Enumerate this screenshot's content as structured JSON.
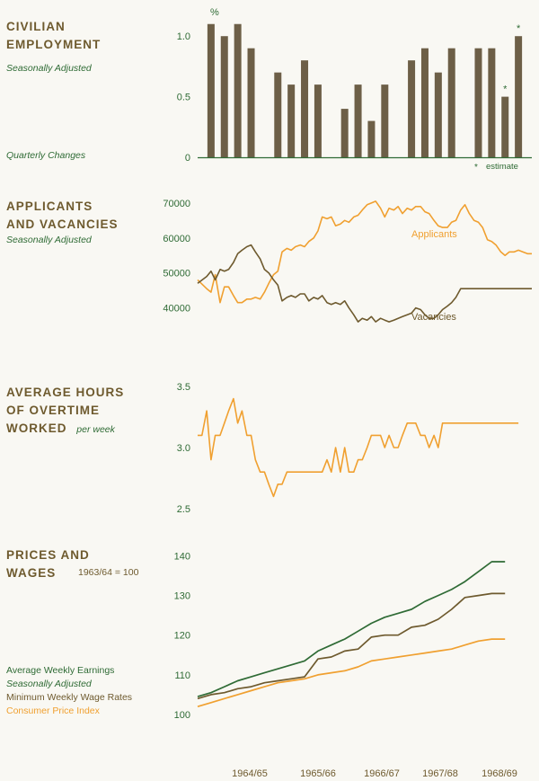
{
  "page": {
    "colors": {
      "green": "#2f6b35",
      "brown": "#6e5a2e",
      "bar": "#6d5f47",
      "orange": "#f0a030",
      "axis": "#2f6b35",
      "background": "#f9f8f3"
    },
    "x_axis_labels": [
      "1964/65",
      "1965/66",
      "1966/67",
      "1967/68",
      "1968/69"
    ]
  },
  "panels": {
    "employment": {
      "title_line1": "CIVILIAN",
      "title_line2": "EMPLOYMENT",
      "subtitle": "Seasonally Adjusted",
      "bottom_label": "Quarterly Changes",
      "unit": "%",
      "estimate_marker": "*",
      "estimate_note": "estimate"
    },
    "applicants": {
      "title_line1": "APPLICANTS",
      "title_line2": "AND VACANCIES",
      "subtitle": "Seasonally Adjusted"
    },
    "overtime": {
      "title_line1": "AVERAGE HOURS",
      "title_line2": "OF OVERTIME",
      "title_line3": "WORKED",
      "title_line3_suffix": "per week"
    },
    "prices": {
      "title_line1": "PRICES AND",
      "title_line2": "WAGES",
      "base_label": "1963/64 = 100",
      "legend": {
        "earnings": "Average Weekly Earnings",
        "earnings_sub": "Seasonally Adjusted",
        "wages": "Minimum Weekly Wage Rates",
        "cpi": "Consumer Price Index"
      }
    }
  },
  "chart_data": [
    {
      "type": "bar",
      "x": [
        1964.25,
        1964.5,
        1964.75,
        1965.0,
        1965.5,
        1965.75,
        1966.0,
        1966.25,
        1966.75,
        1967.0,
        1967.25,
        1967.5,
        1968.0,
        1968.25,
        1968.5,
        1968.75,
        1969.25,
        1969.5,
        1969.75,
        1970.0
      ],
      "values": [
        1.1,
        1.0,
        1.1,
        0.9,
        0.7,
        0.6,
        0.8,
        0.6,
        0.4,
        0.6,
        0.3,
        0.6,
        0.8,
        0.9,
        0.7,
        0.9,
        0.9,
        0.9,
        0.5,
        1.0
      ],
      "estimates": [
        false,
        false,
        false,
        false,
        false,
        false,
        false,
        false,
        false,
        false,
        false,
        false,
        false,
        false,
        false,
        false,
        false,
        false,
        true,
        true
      ],
      "yticks": [
        0,
        0.5,
        1.0
      ],
      "yticklabels": [
        "0",
        "0.5",
        "1.0"
      ],
      "ylim": [
        0,
        1.15
      ],
      "xlim": [
        1964.0,
        1970.25
      ]
    },
    {
      "type": "line",
      "yticks": [
        40000,
        50000,
        60000,
        70000
      ],
      "yticklabels": [
        "40000",
        "50000",
        "60000",
        "70000"
      ],
      "ylim": [
        35000,
        71000
      ],
      "xlim": [
        1964.0,
        1970.25
      ],
      "series": [
        {
          "name": "Applicants",
          "color": "#f0a030",
          "x": [
            1964.0,
            1964.17,
            1964.25,
            1964.33,
            1964.42,
            1964.5,
            1964.58,
            1964.67,
            1964.75,
            1964.83,
            1964.92,
            1965.0,
            1965.08,
            1965.17,
            1965.25,
            1965.33,
            1965.42,
            1965.5,
            1965.58,
            1965.67,
            1965.75,
            1965.83,
            1965.92,
            1966.0,
            1966.08,
            1966.17,
            1966.25,
            1966.33,
            1966.42,
            1966.5,
            1966.58,
            1966.67,
            1966.75,
            1966.83,
            1966.92,
            1967.0,
            1967.08,
            1967.17,
            1967.25,
            1967.33,
            1967.42,
            1967.5,
            1967.58,
            1967.67,
            1967.75,
            1967.83,
            1967.92,
            1968.0,
            1968.08,
            1968.17,
            1968.25,
            1968.33,
            1968.42,
            1968.5,
            1968.58,
            1968.67,
            1968.75,
            1968.83,
            1968.92,
            1969.0,
            1969.08,
            1969.17,
            1969.25,
            1969.33,
            1969.42,
            1969.5,
            1969.58,
            1969.67,
            1969.75,
            1969.83,
            1969.92,
            1970.0,
            1970.08,
            1970.17,
            1970.25
          ],
          "values": [
            48000,
            45500,
            44500,
            49500,
            41500,
            46000,
            46000,
            43500,
            41500,
            41500,
            42500,
            42500,
            43000,
            42500,
            44500,
            47000,
            49500,
            50500,
            56000,
            57000,
            56500,
            57500,
            58000,
            57500,
            59000,
            60000,
            62000,
            66000,
            65500,
            66000,
            63500,
            64000,
            65000,
            64500,
            66000,
            66500,
            68000,
            69500,
            70000,
            70500,
            68500,
            66000,
            68500,
            68000,
            69000,
            67000,
            68500,
            68000,
            69000,
            69000,
            67500,
            67000,
            65000,
            63500,
            63000,
            63000,
            64500,
            65000,
            68000,
            69500,
            67000,
            65000,
            64500,
            63000,
            59500,
            59000,
            58000,
            56000,
            55000,
            56000,
            56000,
            56500,
            56000,
            55500,
            55500
          ]
        },
        {
          "name": "Vacancies",
          "color": "#6e5a2e",
          "x": [
            1964.0,
            1964.17,
            1964.25,
            1964.33,
            1964.42,
            1964.5,
            1964.58,
            1964.67,
            1964.75,
            1964.83,
            1964.92,
            1965.0,
            1965.08,
            1965.17,
            1965.25,
            1965.33,
            1965.42,
            1965.5,
            1965.58,
            1965.67,
            1965.75,
            1965.83,
            1965.92,
            1966.0,
            1966.08,
            1966.17,
            1966.25,
            1966.33,
            1966.42,
            1966.5,
            1966.58,
            1966.67,
            1966.75,
            1966.83,
            1966.92,
            1967.0,
            1967.08,
            1967.17,
            1967.25,
            1967.33,
            1967.42,
            1967.5,
            1967.58,
            1967.67,
            1967.75,
            1967.83,
            1967.92,
            1968.0,
            1968.08,
            1968.17,
            1968.25,
            1968.33,
            1968.42,
            1968.5,
            1968.58,
            1968.67,
            1968.75,
            1968.83,
            1968.92,
            1969.0,
            1969.08,
            1969.17,
            1969.25,
            1969.33,
            1969.42,
            1969.5,
            1969.58,
            1969.67,
            1969.75,
            1969.83,
            1969.92,
            1970.0,
            1970.08,
            1970.17,
            1970.25
          ],
          "values": [
            47000,
            49000,
            50500,
            48000,
            51000,
            50500,
            51000,
            53000,
            55500,
            56500,
            57500,
            58000,
            56000,
            54000,
            51000,
            50000,
            48000,
            46500,
            42000,
            43000,
            43500,
            43000,
            44000,
            44000,
            42000,
            43000,
            42500,
            43500,
            41500,
            41000,
            41500,
            41000,
            42000,
            40000,
            38000,
            36000,
            37000,
            36500,
            37500,
            36000,
            37000,
            36500,
            36000,
            36500,
            37000,
            37500,
            38000,
            38500,
            40000,
            39500,
            38000,
            37000,
            37000,
            38000,
            39500,
            40500,
            41500,
            43000,
            45500,
            45500,
            45500,
            45500,
            45500,
            45500,
            45500,
            45500,
            45500,
            45500,
            45500,
            45500,
            45500,
            45500,
            45500,
            45500,
            45500
          ]
        }
      ]
    },
    {
      "type": "line",
      "ylabel": "",
      "yticks": [
        2.5,
        3.0,
        3.5
      ],
      "yticklabels": [
        "2.5",
        "3.0",
        "3.5"
      ],
      "ylim": [
        2.5,
        3.5
      ],
      "xlim": [
        1964.0,
        1970.25
      ],
      "series": [
        {
          "color": "#f0a030",
          "x": [
            1964.0,
            1964.08,
            1964.17,
            1964.25,
            1964.33,
            1964.42,
            1964.5,
            1964.58,
            1964.67,
            1964.75,
            1964.83,
            1964.92,
            1965.0,
            1965.08,
            1965.17,
            1965.25,
            1965.33,
            1965.42,
            1965.5,
            1965.58,
            1965.67,
            1965.75,
            1965.83,
            1965.92,
            1966.0,
            1966.08,
            1966.17,
            1966.25,
            1966.33,
            1966.42,
            1966.5,
            1966.58,
            1966.67,
            1966.75,
            1966.83,
            1966.92,
            1967.0,
            1967.08,
            1967.17,
            1967.25,
            1967.33,
            1967.42,
            1967.5,
            1967.58,
            1967.67,
            1967.75,
            1967.83,
            1967.92,
            1968.0,
            1968.08,
            1968.17,
            1968.25,
            1968.33,
            1968.42,
            1968.5,
            1968.58,
            1968.67,
            1968.75,
            1968.83,
            1968.92,
            1969.0,
            1969.08,
            1969.17,
            1969.25,
            1969.33,
            1969.42,
            1969.5,
            1969.58,
            1969.67,
            1969.75,
            1969.83,
            1969.92,
            1970.0
          ],
          "values": [
            3.1,
            3.1,
            3.3,
            2.9,
            3.1,
            3.1,
            3.2,
            3.3,
            3.4,
            3.2,
            3.3,
            3.1,
            3.1,
            2.9,
            2.8,
            2.8,
            2.7,
            2.6,
            2.7,
            2.7,
            2.8,
            2.8,
            2.8,
            2.8,
            2.8,
            2.8,
            2.8,
            2.8,
            2.8,
            2.9,
            2.8,
            3.0,
            2.8,
            3.0,
            2.8,
            2.8,
            2.9,
            2.9,
            3.0,
            3.1,
            3.1,
            3.1,
            3.0,
            3.1,
            3.0,
            3.0,
            3.1,
            3.2,
            3.2,
            3.2,
            3.1,
            3.1,
            3.0,
            3.1,
            3.0,
            3.2,
            3.2,
            3.2,
            3.2,
            3.2,
            3.2,
            3.2,
            3.2,
            3.2,
            3.2,
            3.2,
            3.2,
            3.2,
            3.2,
            3.2,
            3.2,
            3.2,
            3.2
          ]
        }
      ]
    },
    {
      "type": "line",
      "yticks": [
        100,
        110,
        120,
        130,
        140
      ],
      "yticklabels": [
        "100",
        "110",
        "120",
        "130",
        "140"
      ],
      "ylim": [
        100,
        141
      ],
      "xlim": [
        1964.0,
        1970.25
      ],
      "series": [
        {
          "name": "Average Weekly Earnings",
          "color": "#2f6b35",
          "x": [
            1964.0,
            1964.25,
            1964.5,
            1964.75,
            1965.0,
            1965.25,
            1965.5,
            1965.75,
            1966.0,
            1966.25,
            1966.5,
            1966.75,
            1967.0,
            1967.25,
            1967.5,
            1967.75,
            1968.0,
            1968.25,
            1968.5,
            1968.75,
            1969.0,
            1969.25,
            1969.5,
            1969.75
          ],
          "values": [
            104.5,
            105.5,
            107,
            108.5,
            109.5,
            110.5,
            111.5,
            112.5,
            113.5,
            116,
            117.5,
            119,
            121,
            123,
            124.5,
            125.5,
            126.5,
            128.5,
            130,
            131.5,
            133.5,
            136,
            138.5,
            138.5
          ]
        },
        {
          "name": "Minimum Weekly Wage Rates",
          "color": "#6e5a2e",
          "x": [
            1964.0,
            1964.25,
            1964.5,
            1964.75,
            1965.0,
            1965.25,
            1965.5,
            1965.75,
            1966.0,
            1966.25,
            1966.5,
            1966.75,
            1967.0,
            1967.25,
            1967.5,
            1967.75,
            1968.0,
            1968.25,
            1968.5,
            1968.75,
            1969.0,
            1969.25,
            1969.5,
            1969.75
          ],
          "values": [
            104,
            105,
            105.5,
            106.5,
            107,
            108,
            108.5,
            109,
            109.5,
            114,
            114.5,
            116,
            116.5,
            119.5,
            120,
            120,
            122,
            122.5,
            124,
            126.5,
            129.5,
            130,
            130.5,
            130.5
          ]
        },
        {
          "name": "Consumer Price Index",
          "color": "#f0a030",
          "x": [
            1964.0,
            1964.25,
            1964.5,
            1964.75,
            1965.0,
            1965.25,
            1965.5,
            1965.75,
            1966.0,
            1966.25,
            1966.5,
            1966.75,
            1967.0,
            1967.25,
            1967.5,
            1967.75,
            1968.0,
            1968.25,
            1968.5,
            1968.75,
            1969.0,
            1969.25,
            1969.5,
            1969.75
          ],
          "values": [
            102,
            103,
            104,
            105,
            106,
            107,
            108,
            108.5,
            109,
            110,
            110.5,
            111,
            112,
            113.5,
            114,
            114.5,
            115,
            115.5,
            116,
            116.5,
            117.5,
            118.5,
            119,
            119
          ]
        }
      ]
    }
  ]
}
